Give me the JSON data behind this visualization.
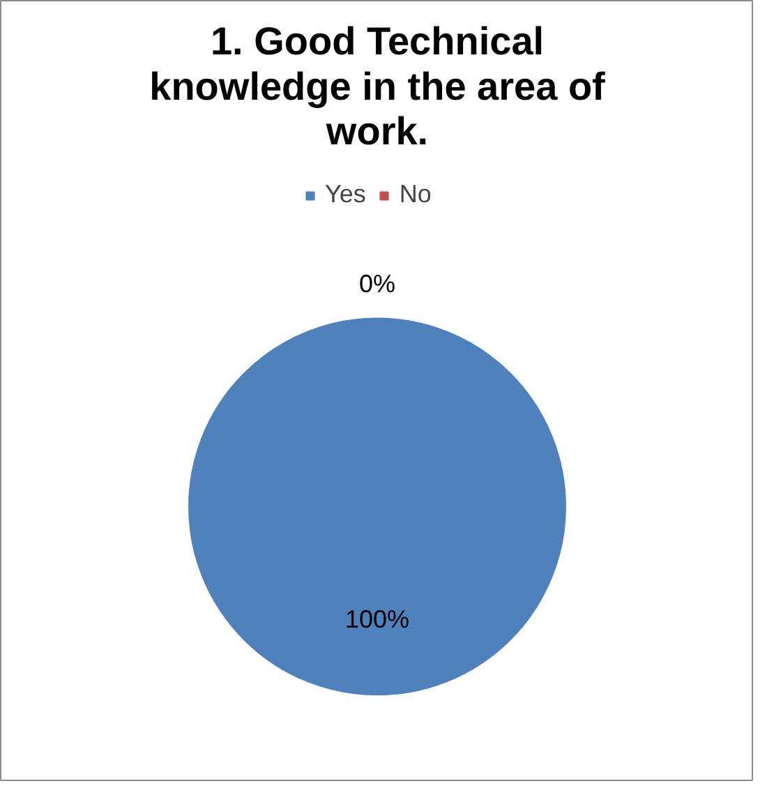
{
  "chart_data": {
    "type": "pie",
    "title": "1. Good Technical knowledge in the area of work.",
    "categories": [
      "Yes",
      "No"
    ],
    "values": [
      100,
      0
    ],
    "colors": [
      "#4f81bd",
      "#c0504d"
    ],
    "value_labels": [
      "100%",
      "0%"
    ],
    "legend": "top"
  }
}
